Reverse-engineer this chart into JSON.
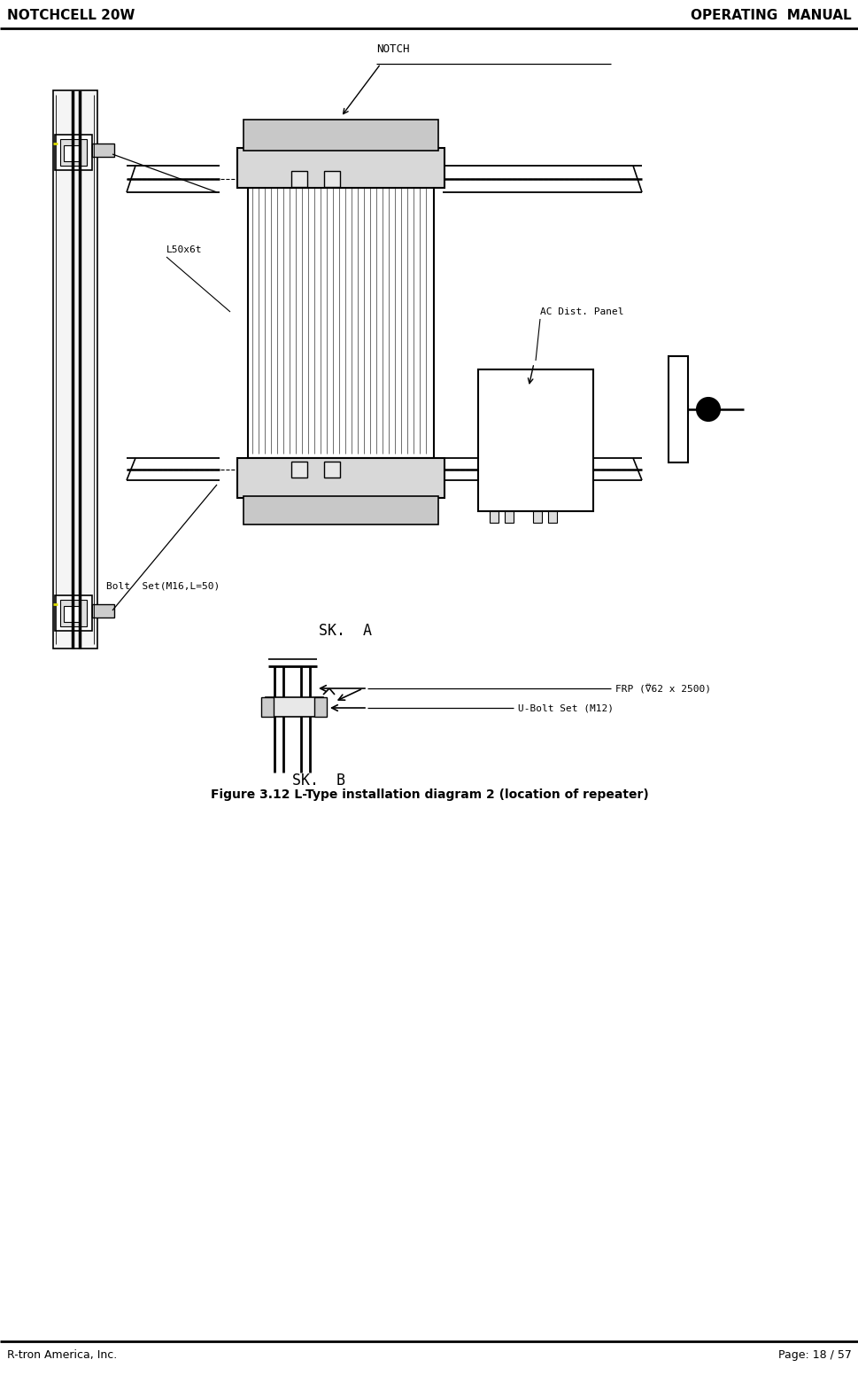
{
  "title_left": "NOTCHCELL 20W",
  "title_right": "OPERATING  MANUAL",
  "footer_left": "R-tron America, Inc.",
  "footer_right": "Page: 18 / 57",
  "figure_caption": "Figure 3.12 L-Type installation diagram 2 (location of repeater)",
  "bg_color": "#ffffff",
  "text_color": "#000000",
  "line_color": "#000000",
  "title_fontsize": 11,
  "footer_fontsize": 9,
  "caption_fontsize": 10,
  "diagram_fontsize": 8
}
